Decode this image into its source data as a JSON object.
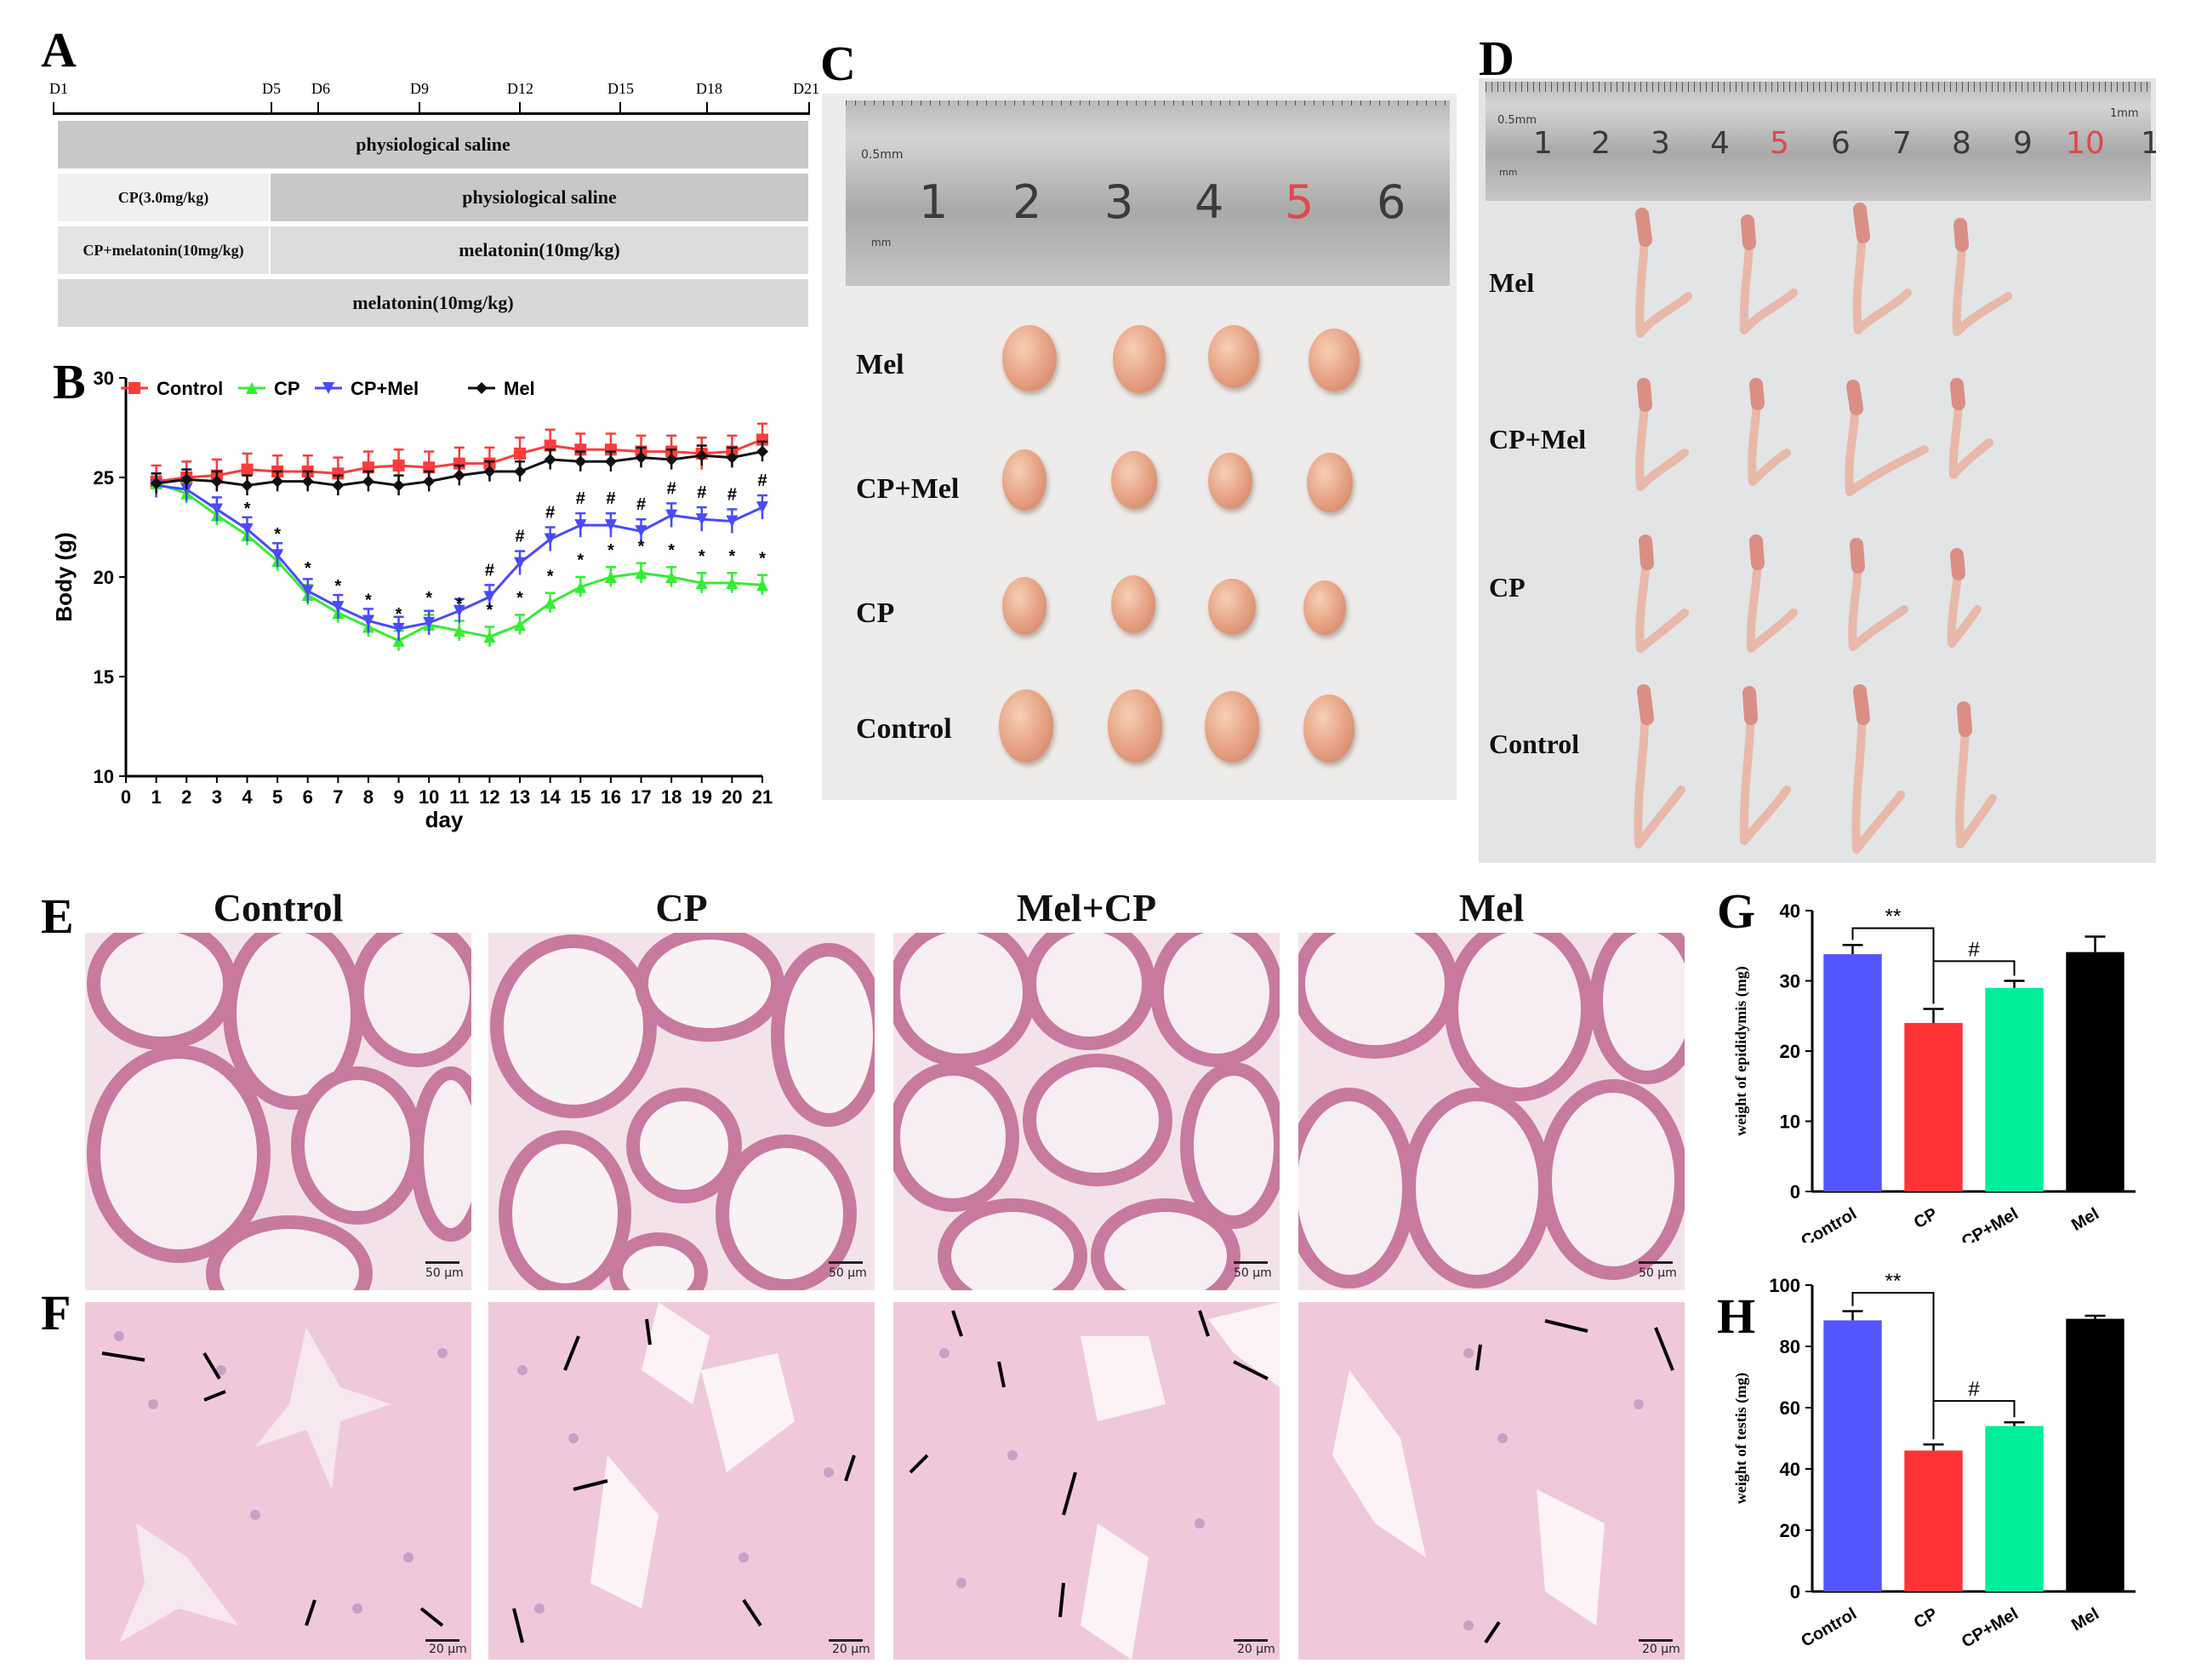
{
  "panels": {
    "A": "A",
    "B": "B",
    "C": "C",
    "D": "D",
    "E": "E",
    "F": "F",
    "G": "G",
    "H": "H"
  },
  "timeline": {
    "days": [
      "D1",
      "D5",
      "D6",
      "D9",
      "D12",
      "D15",
      "D18",
      "D21"
    ],
    "rows": [
      {
        "left": "physiological saline",
        "right": ""
      },
      {
        "left": "CP(3.0mg/kg)",
        "right": "physiological saline"
      },
      {
        "left": "CP+melatonin(10mg/kg)",
        "right": "melatonin(10mg/kg)"
      },
      {
        "left": "melatonin(10mg/kg)",
        "right": ""
      }
    ]
  },
  "colors": {
    "control": "#ff3b3b",
    "cp": "#33ee33",
    "cpmel": "#4a4aff",
    "mel": "#111111",
    "bar_control": "#5555ff",
    "bar_cp": "#ff3333",
    "bar_cpmel": "#00ee99",
    "bar_mel": "#000000"
  },
  "chart_data": [
    {
      "id": "B",
      "type": "line",
      "xlabel": "day",
      "ylabel": "Body (g)",
      "xlim": [
        0,
        21
      ],
      "ylim": [
        10,
        30
      ],
      "xticks": [
        "0",
        "1",
        "2",
        "3",
        "4",
        "5",
        "6",
        "7",
        "8",
        "9",
        "10",
        "11",
        "12",
        "13",
        "14",
        "15",
        "16",
        "17",
        "18",
        "19",
        "20",
        "21"
      ],
      "yticks": [
        "10",
        "15",
        "20",
        "25",
        "30"
      ],
      "x": [
        1,
        2,
        3,
        4,
        5,
        6,
        7,
        8,
        9,
        10,
        11,
        12,
        13,
        14,
        15,
        16,
        17,
        18,
        19,
        20,
        21
      ],
      "series": [
        {
          "name": "Control",
          "values": [
            24.8,
            25.0,
            25.1,
            25.4,
            25.3,
            25.3,
            25.2,
            25.5,
            25.6,
            25.5,
            25.7,
            25.7,
            26.2,
            26.6,
            26.4,
            26.4,
            26.3,
            26.3,
            26.2,
            26.3,
            26.9
          ]
        },
        {
          "name": "CP",
          "values": [
            24.7,
            24.2,
            23.1,
            22.1,
            20.8,
            19.1,
            18.2,
            17.5,
            16.8,
            17.6,
            17.3,
            17.0,
            17.6,
            18.7,
            19.5,
            20.0,
            20.2,
            20.0,
            19.7,
            19.7,
            19.6
          ]
        },
        {
          "name": "CP+Mel",
          "values": [
            24.6,
            24.4,
            23.4,
            22.4,
            21.1,
            19.3,
            18.5,
            17.8,
            17.4,
            17.7,
            18.3,
            19.0,
            20.7,
            21.9,
            22.6,
            22.6,
            22.3,
            23.1,
            22.9,
            22.8,
            23.5
          ]
        },
        {
          "name": "Mel",
          "values": [
            24.7,
            24.9,
            24.8,
            24.6,
            24.8,
            24.8,
            24.6,
            24.8,
            24.6,
            24.8,
            25.1,
            25.3,
            25.3,
            25.9,
            25.8,
            25.8,
            26.0,
            25.9,
            26.1,
            26.0,
            26.3
          ]
        }
      ],
      "star_days": [
        4,
        5,
        6,
        7,
        8,
        9,
        10,
        11,
        12,
        13,
        14,
        15,
        16,
        17,
        18,
        19,
        20,
        21
      ],
      "hash_days": [
        12,
        13,
        14,
        15,
        16,
        17,
        18,
        19,
        20,
        21
      ],
      "star": "*",
      "hash": "#"
    },
    {
      "id": "G",
      "type": "bar",
      "categories": [
        "Control",
        "CP",
        "CP+Mel",
        "Mel"
      ],
      "values": [
        33.8,
        24.0,
        29.0,
        34.1
      ],
      "errors": [
        1.3,
        2.0,
        1.0,
        2.2
      ],
      "ylabel": "weight of epididymis (mg)",
      "ylim": [
        0,
        40
      ],
      "yticks": [
        "0",
        "10",
        "20",
        "30",
        "40"
      ],
      "sig1": "**",
      "sig2": "#"
    },
    {
      "id": "H",
      "type": "bar",
      "categories": [
        "Control",
        "CP",
        "CP+Mel",
        "Mel"
      ],
      "values": [
        88.5,
        46.0,
        54.0,
        89.0
      ],
      "errors": [
        3.0,
        2.0,
        1.2,
        1.0
      ],
      "ylabel": "weight of testis (mg)",
      "ylim": [
        0,
        100
      ],
      "yticks": [
        "0",
        "20",
        "40",
        "60",
        "80",
        "100"
      ],
      "sig1": "**",
      "sig2": "#"
    }
  ],
  "photoC": {
    "ruler_text": "0.5mm",
    "ruler_unit": "mm",
    "ruler_numbers": [
      "1",
      "2",
      "3",
      "4",
      "5",
      "6"
    ],
    "rows": [
      "Mel",
      "CP+Mel",
      "CP",
      "Control"
    ]
  },
  "photoD": {
    "ruler_text": "0.5mm",
    "ruler_unit": "mm",
    "ruler_mm": "1mm",
    "ruler_numbers": [
      "1",
      "2",
      "3",
      "4",
      "5",
      "6",
      "7",
      "8",
      "9",
      "10",
      "1"
    ],
    "rows": [
      "Mel",
      "CP+Mel",
      "CP",
      "Control"
    ]
  },
  "histology": {
    "columns": [
      "Control",
      "CP",
      "Mel+CP",
      "Mel"
    ],
    "scale_E": "50 μm",
    "scale_F": "20 μm"
  }
}
